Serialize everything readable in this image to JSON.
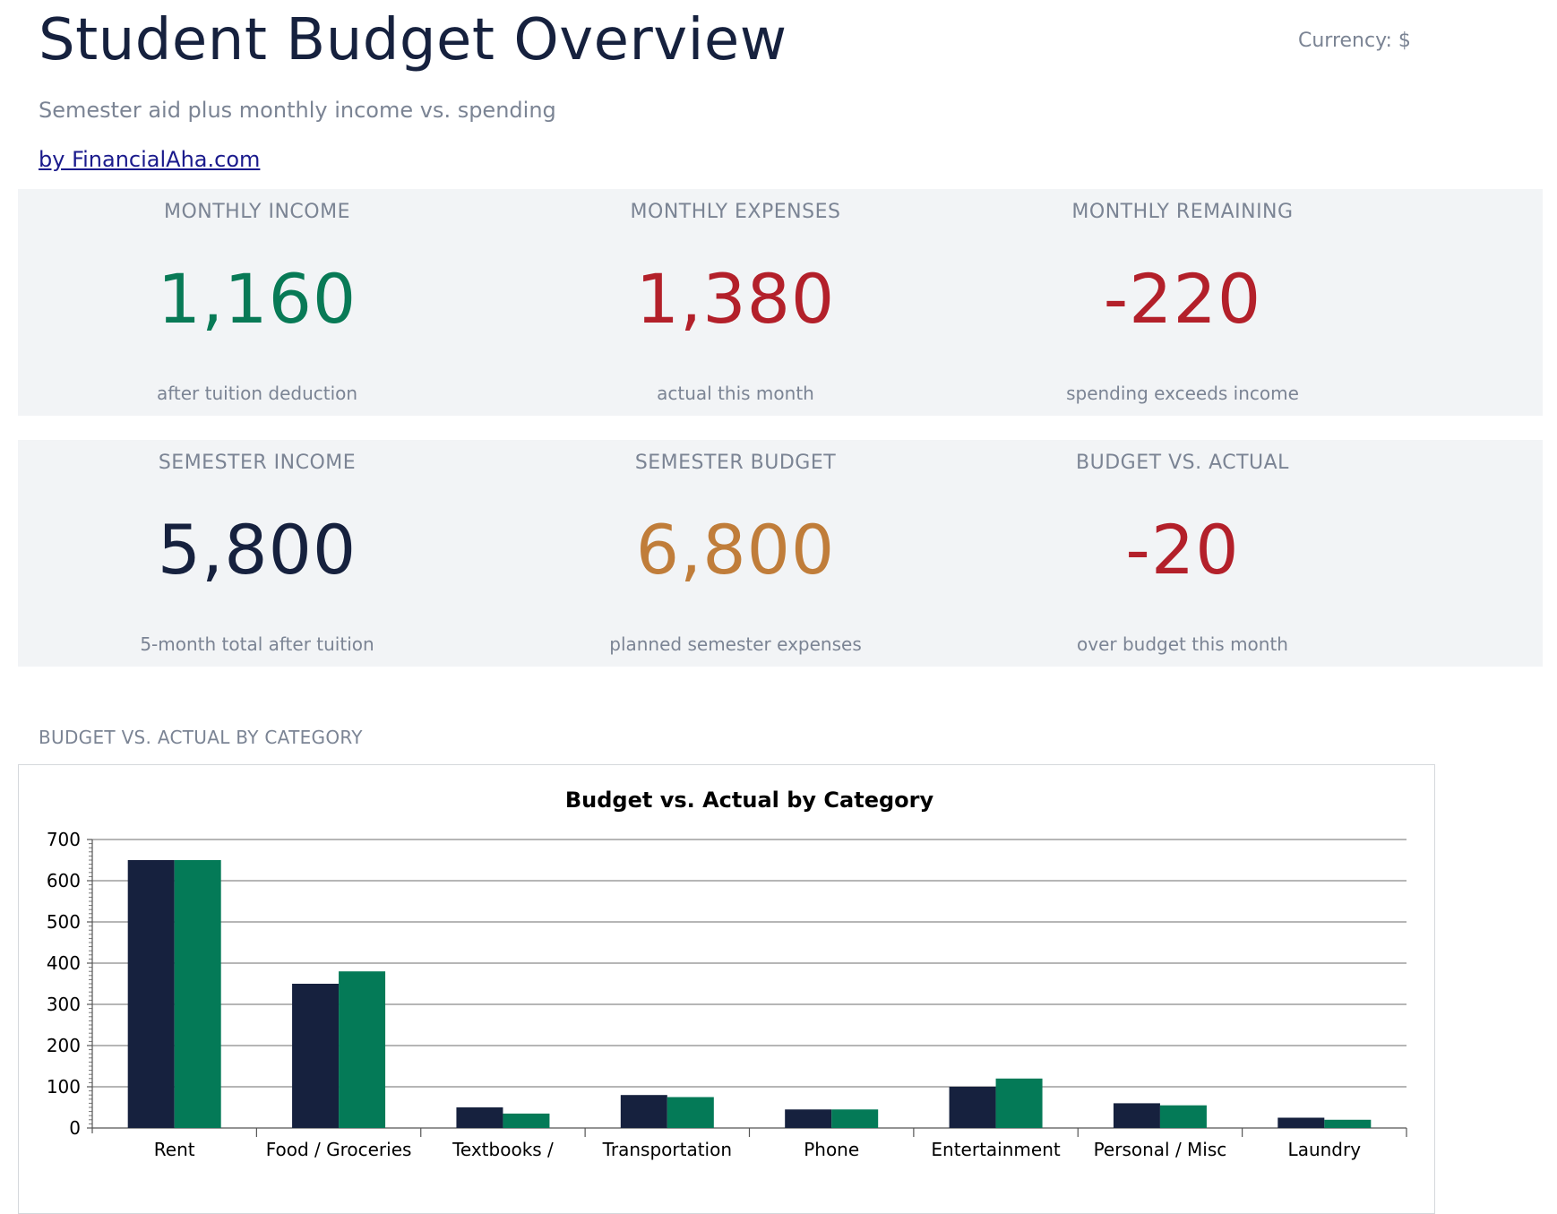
{
  "header": {
    "title": "Student Budget Overview",
    "subtitle": "Semester aid plus monthly income vs. spending",
    "byline": "by FinancialAha.com",
    "currency": "Currency: $"
  },
  "colors": {
    "positive": "#087a56",
    "negative": "#b3202a",
    "neutral": "#16213e",
    "budget_accent": "#c07d3a",
    "muted_text": "#7b8494",
    "panel_bg": "#f2f4f6",
    "budget_bar": "#16213e",
    "actual_bar": "#047a57"
  },
  "kpis_monthly": [
    {
      "label": "MONTHLY INCOME",
      "value": "1,160",
      "note": "after tuition deduction",
      "tone": "positive"
    },
    {
      "label": "MONTHLY EXPENSES",
      "value": "1,380",
      "note": "actual this month",
      "tone": "negative"
    },
    {
      "label": "MONTHLY REMAINING",
      "value": "-220",
      "note": "spending exceeds income",
      "tone": "negative"
    }
  ],
  "kpis_semester": [
    {
      "label": "SEMESTER INCOME",
      "value": "5,800",
      "note": "5-month total after tuition",
      "tone": "neutral"
    },
    {
      "label": "SEMESTER BUDGET",
      "value": "6,800",
      "note": "planned semester expenses",
      "tone": "budget_accent"
    },
    {
      "label": "BUDGET VS. ACTUAL",
      "value": "-20",
      "note": "over budget this month",
      "tone": "negative"
    }
  ],
  "section": {
    "chart_label": "BUDGET VS. ACTUAL BY CATEGORY"
  },
  "chart_data": {
    "type": "bar",
    "title": "Budget vs. Actual by Category",
    "xlabel": "",
    "ylabel": "",
    "ylim": [
      0,
      700
    ],
    "yticks": [
      0,
      100,
      200,
      300,
      400,
      500,
      600,
      700
    ],
    "grid": true,
    "categories": [
      "Rent",
      "Food / Groceries",
      "Textbooks /",
      "Transportation",
      "Phone",
      "Entertainment",
      "Personal / Misc",
      "Laundry"
    ],
    "series": [
      {
        "values": [
          650,
          350,
          50,
          80,
          45,
          100,
          60,
          25
        ]
      },
      {
        "values": [
          650,
          380,
          35,
          75,
          45,
          120,
          55,
          20
        ]
      }
    ]
  }
}
